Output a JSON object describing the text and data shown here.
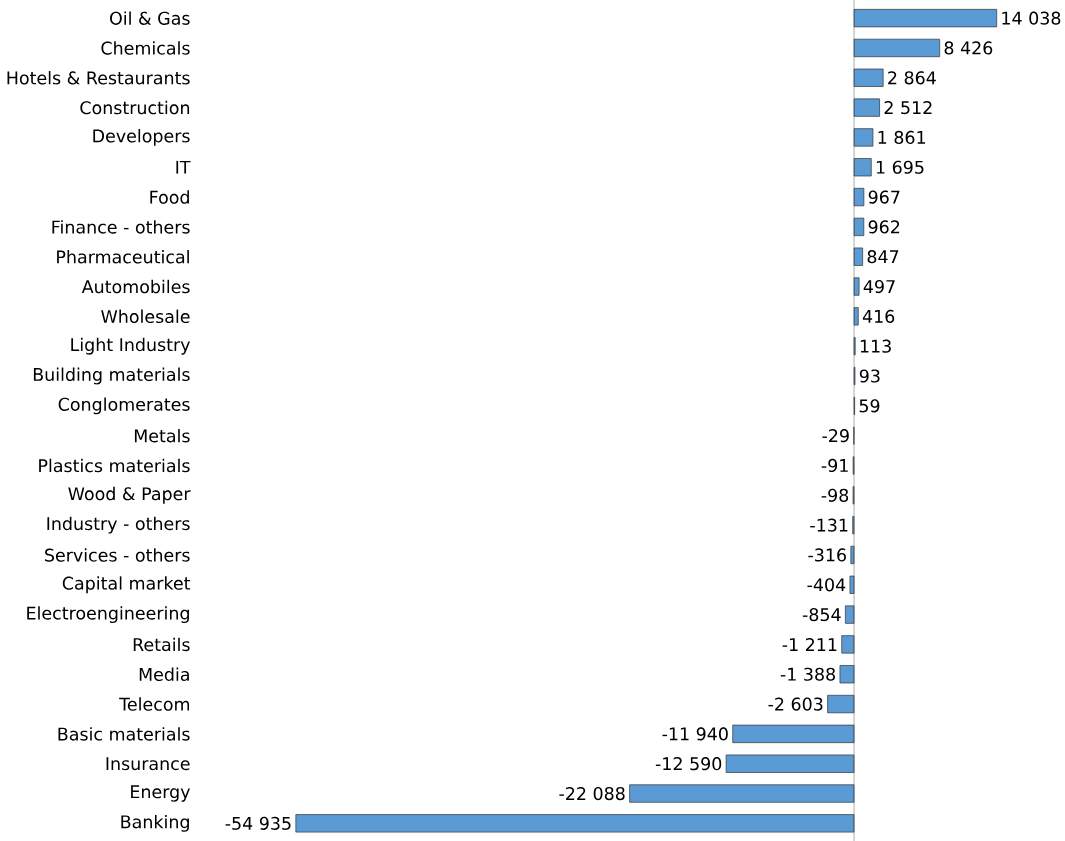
{
  "chart_data": {
    "type": "bar",
    "orientation": "horizontal",
    "tick_labels": "y",
    "color": "#5b9bd5",
    "categories": [
      "Oil & Gas",
      "Chemicals",
      "Hotels & Restaurants",
      "Construction",
      "Developers",
      "IT",
      "Food",
      "Finance - others",
      "Pharmaceutical",
      "Automobiles",
      "Wholesale",
      "Light Industry",
      "Building materials",
      "Conglomerates",
      "Metals",
      "Plastics materials",
      "Wood & Paper",
      "Industry - others",
      "Services - others",
      "Capital market",
      "Electroengineering",
      "Retails",
      "Media",
      "Telecom",
      "Basic materials",
      "Insurance",
      "Energy",
      "Banking"
    ],
    "values": [
      14038,
      8426,
      2864,
      2512,
      1861,
      1695,
      967,
      962,
      847,
      497,
      416,
      113,
      93,
      59,
      -29,
      -91,
      -98,
      -131,
      -316,
      -404,
      -854,
      -1211,
      -1388,
      -2603,
      -11940,
      -12590,
      -22088,
      -54935
    ],
    "value_labels": [
      "14 038",
      "8 426",
      "2 864",
      "2 512",
      "1 861",
      "1 695",
      "967",
      "962",
      "847",
      "497",
      "416",
      "113",
      "93",
      "59",
      "-29",
      "-91",
      "-98",
      "-131",
      "-316",
      "-404",
      "-854",
      "-1 211",
      "-1 388",
      "-2 603",
      "-11 940",
      "-12 590",
      "-22 088",
      "-54 935"
    ]
  }
}
